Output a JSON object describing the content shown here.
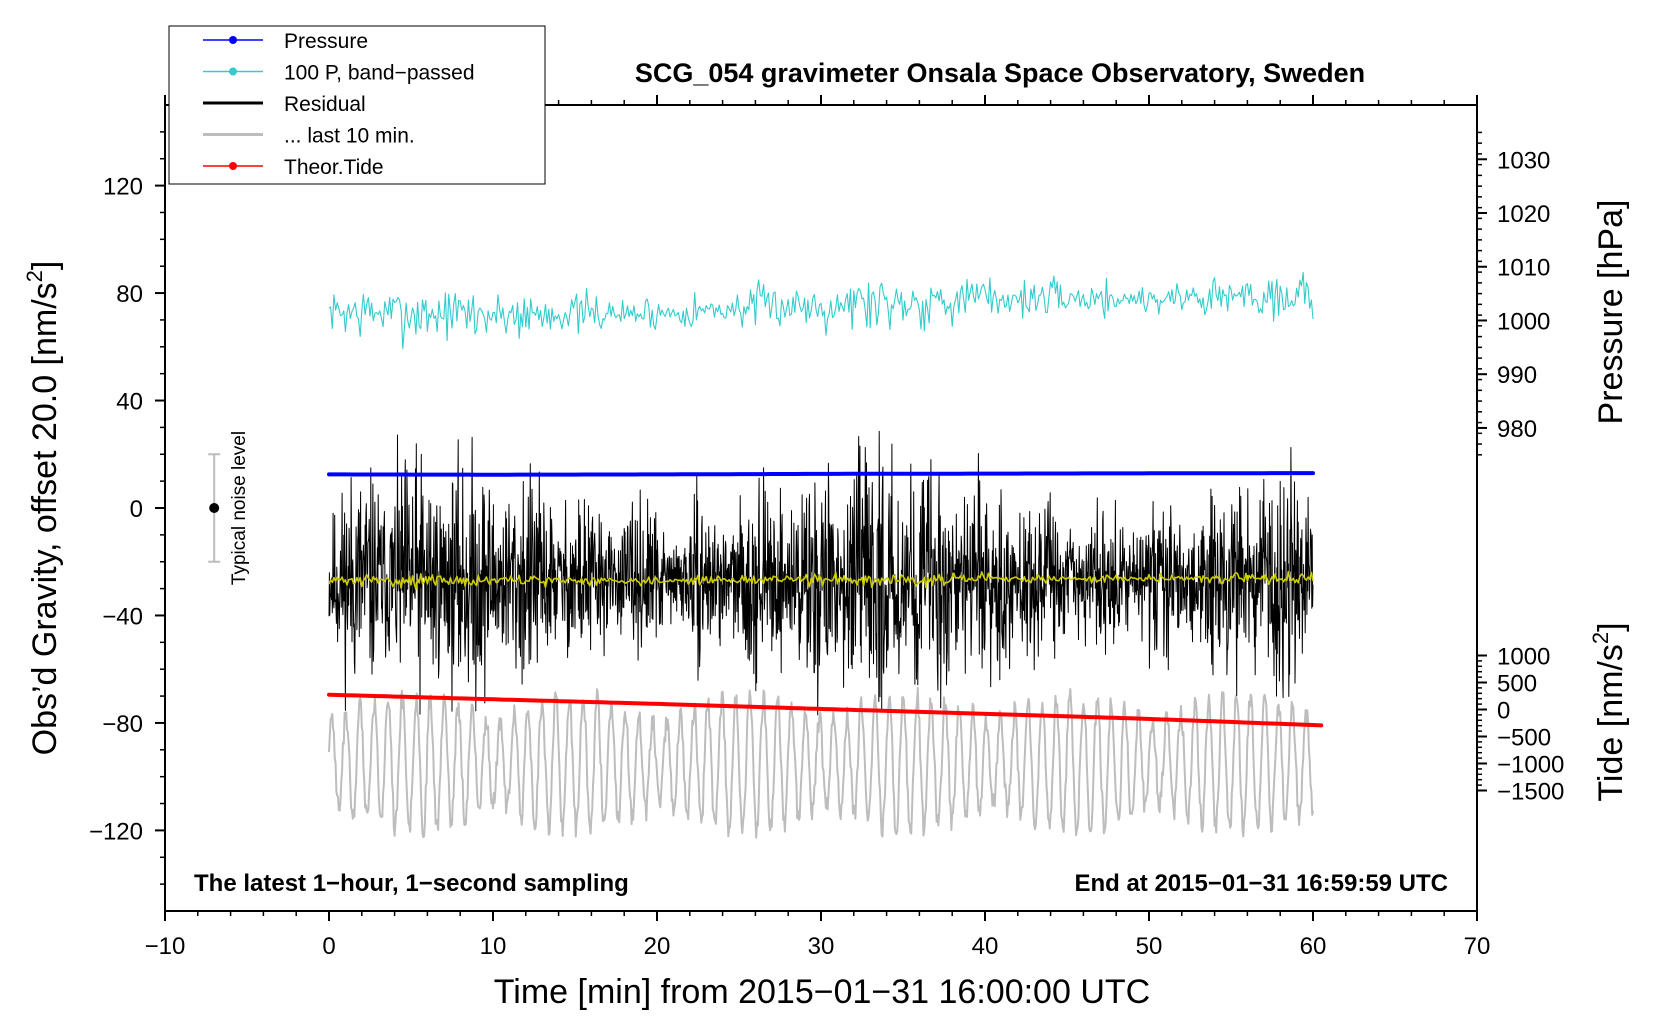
{
  "chart_data": {
    "type": "line",
    "title": "SCG_054 gravimeter Onsala Space Observatory, Sweden",
    "xlabel": "Time [min] from 2015−01−31 16:00:00 UTC",
    "ylabel_left": "Obs’d Gravity, offset 20.0 [nm/s",
    "ylabel_left_sup": "2",
    "ylabel_left_close": "]",
    "ylabel_right_pressure": "Pressure [hPa]",
    "ylabel_right_tide": "Tide [nm/s",
    "ylabel_right_tide_sup": "2",
    "ylabel_right_tide_close": "]",
    "xlim": [
      -10,
      70
    ],
    "ylim": [
      -150,
      150
    ],
    "x_ticks": [
      {
        "value": -10,
        "label": "−10"
      },
      {
        "value": 0,
        "label": "0"
      },
      {
        "value": 10,
        "label": "10"
      },
      {
        "value": 20,
        "label": "20"
      },
      {
        "value": 30,
        "label": "30"
      },
      {
        "value": 40,
        "label": "40"
      },
      {
        "value": 50,
        "label": "50"
      },
      {
        "value": 60,
        "label": "60"
      },
      {
        "value": 70,
        "label": "70"
      }
    ],
    "y_ticks": [
      {
        "value": 120,
        "label": "120"
      },
      {
        "value": 80,
        "label": "80"
      },
      {
        "value": 40,
        "label": "40"
      },
      {
        "value": 0,
        "label": "0"
      },
      {
        "value": -40,
        "label": "−40"
      },
      {
        "value": -80,
        "label": "−80"
      },
      {
        "value": -120,
        "label": "−120"
      }
    ],
    "pressure_axis": {
      "gravity_per_hpa": 2.0,
      "gravity_at_1000hpa": 69.8,
      "ticks": [
        {
          "value": 1030,
          "label": "1030"
        },
        {
          "value": 1020,
          "label": "1020"
        },
        {
          "value": 1010,
          "label": "1010"
        },
        {
          "value": 1000,
          "label": "1000"
        },
        {
          "value": 990,
          "label": "990"
        },
        {
          "value": 980,
          "label": "980"
        }
      ]
    },
    "tide_axis": {
      "gravity_per_nms2": 0.0201,
      "gravity_at_zero": -75.0,
      "ticks": [
        {
          "value": 1000,
          "label": "1000"
        },
        {
          "value": 500,
          "label": "500"
        },
        {
          "value": 0,
          "label": "0"
        },
        {
          "value": -500,
          "label": "−500"
        },
        {
          "value": -1000,
          "label": "−1000"
        },
        {
          "value": -1500,
          "label": "−1500"
        }
      ]
    },
    "series": [
      {
        "name": "Pressure",
        "color": "#0000ff",
        "kind": "line",
        "x": [
          0,
          10,
          20,
          30,
          40,
          50,
          60
        ],
        "values": [
          12.5,
          12.4,
          12.5,
          12.7,
          12.8,
          12.9,
          13.0
        ]
      },
      {
        "name": "100 P, band−passed",
        "color": "#33cccc",
        "kind": "noise",
        "x": [
          0,
          10,
          20,
          30,
          40,
          50,
          60
        ],
        "values": [
          73,
          72,
          72.5,
          76,
          78,
          78,
          80
        ],
        "amplitude": 3.5,
        "seed": 7
      },
      {
        "name": "Residual",
        "color": "#000000",
        "kind": "noise",
        "x": [
          0,
          10,
          20,
          30,
          40,
          50,
          60
        ],
        "values": [
          -27,
          -27,
          -27,
          -27,
          -27,
          -27,
          -27
        ],
        "amplitude": 14,
        "seed": 11
      },
      {
        "name": "... last 10 min.",
        "color": "#bdbdbd",
        "kind": "wave",
        "x": [
          0,
          10,
          20,
          30,
          40,
          50,
          60
        ],
        "values": [
          -95,
          -95,
          -95,
          -95,
          -95,
          -95,
          -95
        ],
        "amplitude": 25,
        "seed": 23
      },
      {
        "name": "Theor.Tide",
        "color": "#ff0000",
        "kind": "line",
        "x": [
          0,
          10,
          20,
          30,
          40,
          50,
          60.5
        ],
        "values": [
          -69.5,
          -71.2,
          -72.9,
          -74.8,
          -76.6,
          -78.5,
          -80.9
        ]
      },
      {
        "name": "",
        "color": "#cccc00",
        "kind": "noise",
        "x": [
          0,
          10,
          20,
          30,
          40,
          50,
          60
        ],
        "values": [
          -27,
          -27,
          -27,
          -26.5,
          -26.5,
          -26.2,
          -26
        ],
        "amplitude": 0.8,
        "seed": 31
      }
    ],
    "legend": [
      {
        "label": "Pressure",
        "color": "#0000ff",
        "marker": true
      },
      {
        "label": "100 P, band−passed",
        "color": "#33cccc",
        "marker": true
      },
      {
        "label": "Residual",
        "color": "#000000",
        "marker": false
      },
      {
        "label": "... last 10 min.",
        "color": "#bdbdbd",
        "marker": false
      },
      {
        "label": "Theor.Tide",
        "color": "#ff0000",
        "marker": true
      }
    ],
    "noise_level": {
      "label": "Typical noise level",
      "x": -7,
      "center": 0,
      "upper": 20,
      "lower": -20
    },
    "annotations": {
      "bottom_left": "The latest 1−hour, 1−second sampling",
      "bottom_right": "End at 2015−01−31 16:59:59 UTC"
    }
  }
}
